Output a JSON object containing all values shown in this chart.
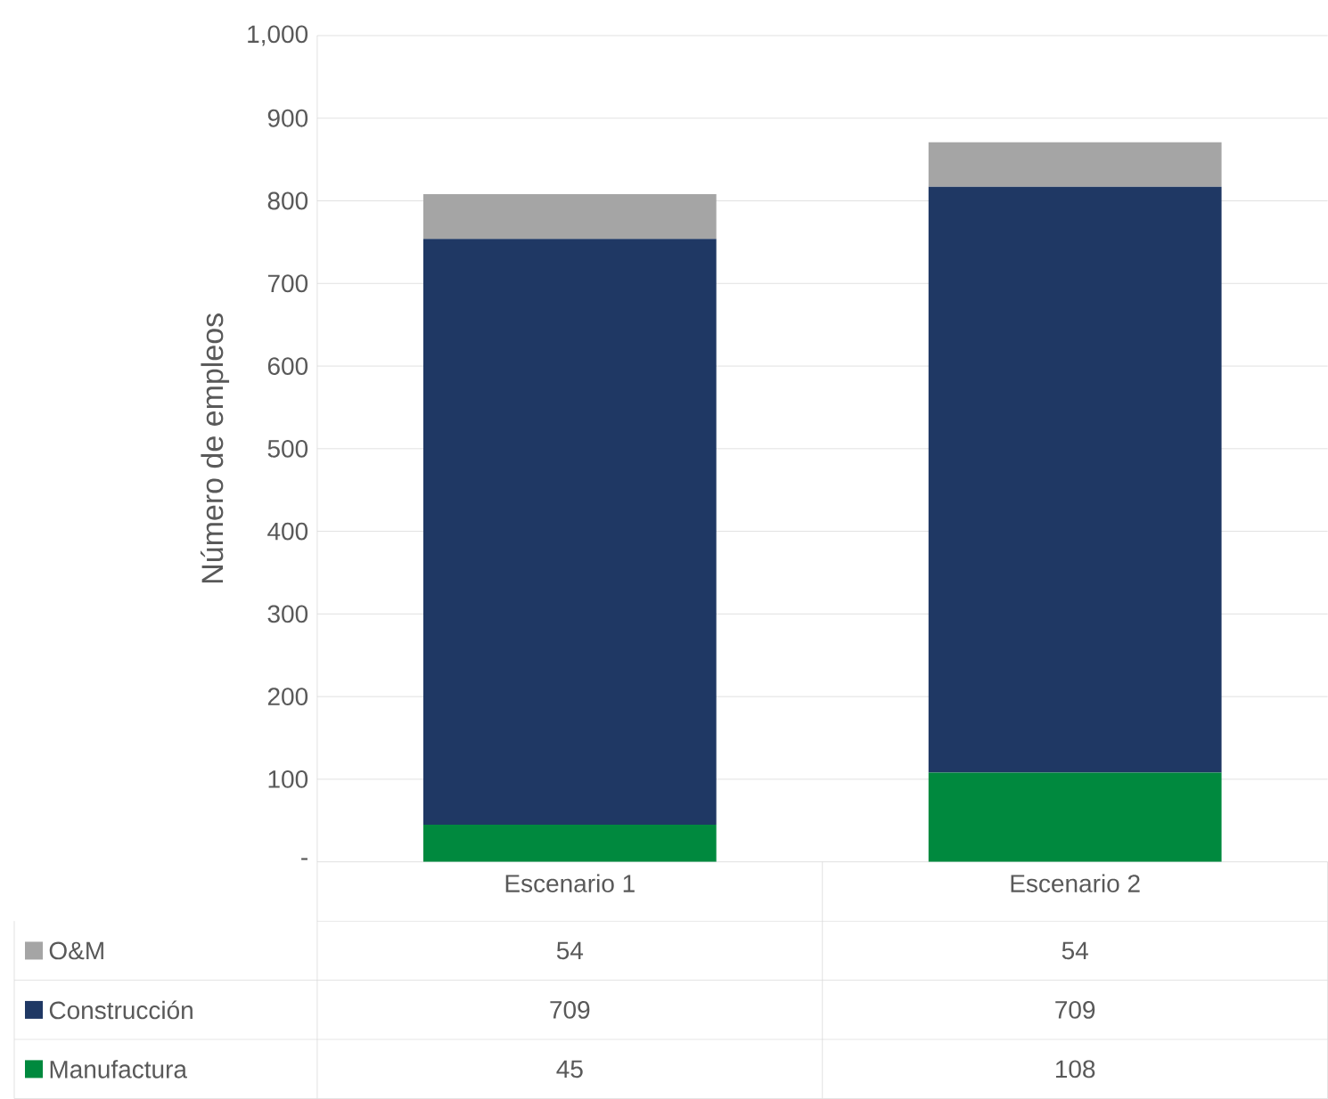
{
  "chart_data": {
    "type": "bar",
    "stacked": true,
    "ylabel": "Número de empleos",
    "categories": [
      "Escenario 1",
      "Escenario 2"
    ],
    "series": [
      {
        "name": "Manufactura",
        "color": "#00893e",
        "values": [
          45,
          108
        ]
      },
      {
        "name": "Construcción",
        "color": "#1f3864",
        "values": [
          709,
          709
        ]
      },
      {
        "name": "O&M",
        "color": "#a5a5a5",
        "values": [
          54,
          54
        ]
      }
    ],
    "ylim": [
      0,
      1000
    ],
    "yticks": [
      {
        "value": 0,
        "label": "-"
      },
      100,
      200,
      300,
      400,
      500,
      600,
      700,
      800,
      900,
      {
        "value": 1000,
        "label": "1,000"
      }
    ],
    "grid": "y",
    "data_labels": true,
    "legend": "bottom"
  }
}
